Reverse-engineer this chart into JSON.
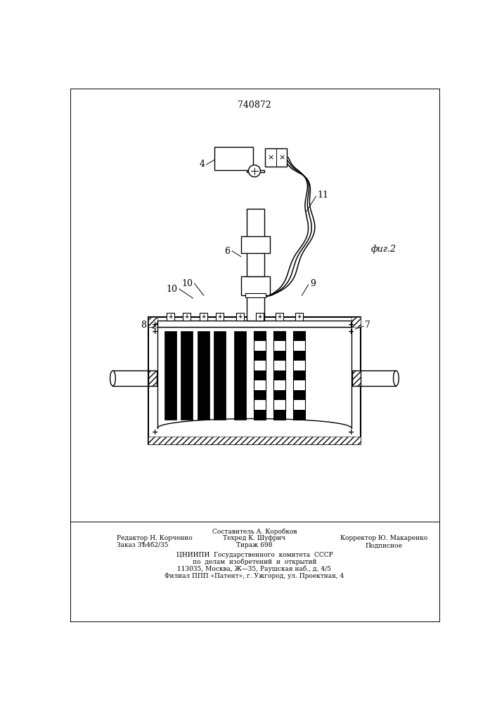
{
  "patent_number": "740872",
  "fig_label": "фиг.2",
  "background_color": "#ffffff",
  "line_color": "#000000",
  "bottom_text_left1": "Редактор Н. Корченио",
  "bottom_text_left2": "Заказ 3Ѣ4б2/35",
  "bottom_text_center0": "Составитель А. Коробков",
  "bottom_text_center1": "Техред К. Шуфрич",
  "bottom_text_center2": "Тираж 698",
  "bottom_text_right1": "Корректор Ю. Макаренко",
  "bottom_text_right2": "Подписное",
  "bottom_text_cniip1": "ЦНИИПИ  Государственного  комитета  СССР",
  "bottom_text_cniip2": "по  делам  изобретений  и  открытий",
  "bottom_text_cniip3": "113035, Москва, Ж—35, Раушская наб., д. 4/5",
  "bottom_text_cniip4": "Филиал ППП «Патент», г. Ужгород, ул. Проектная, 4"
}
